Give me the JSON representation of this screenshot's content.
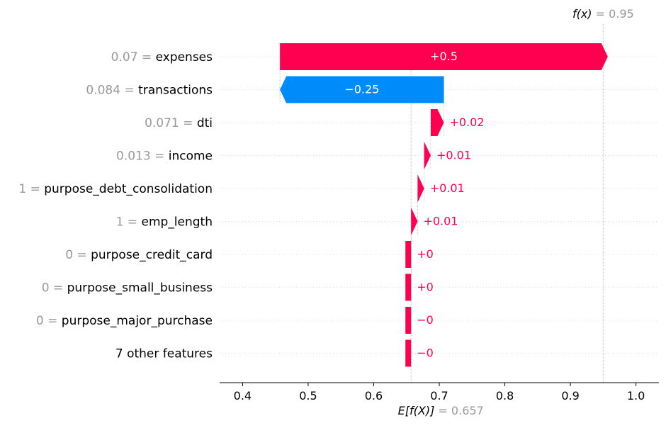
{
  "chart_data": {
    "type": "waterfall",
    "base_value": 0.657,
    "base_value_label": "0.657",
    "fx_value": 0.95,
    "fx_value_label": "0.95",
    "fx_label": "f(x)",
    "efx_label": "E[f(X)]",
    "xlim": [
      0.365,
      1.035
    ],
    "xticks": [
      0.4,
      0.5,
      0.6,
      0.7,
      0.8,
      0.9,
      1.0
    ],
    "xtick_labels": [
      "0.4",
      "0.5",
      "0.6",
      "0.7",
      "0.8",
      "0.9",
      "1.0"
    ],
    "colors": {
      "positive": "#ff0051",
      "negative": "#008bfb",
      "value_text": "#999999"
    },
    "features": [
      {
        "value_label": "0.07",
        "name": "expenses",
        "contribution": 0.5,
        "contribution_label": "+0.5"
      },
      {
        "value_label": "0.084",
        "name": "transactions",
        "contribution": -0.25,
        "contribution_label": "−0.25"
      },
      {
        "value_label": "0.071",
        "name": "dti",
        "contribution": 0.02,
        "contribution_label": "+0.02"
      },
      {
        "value_label": "0.013",
        "name": "income",
        "contribution": 0.01,
        "contribution_label": "+0.01"
      },
      {
        "value_label": "1",
        "name": "purpose_debt_consolidation",
        "contribution": 0.01,
        "contribution_label": "+0.01"
      },
      {
        "value_label": "1",
        "name": "emp_length",
        "contribution": 0.01,
        "contribution_label": "+0.01"
      },
      {
        "value_label": "0",
        "name": "purpose_credit_card",
        "contribution": 0.0,
        "contribution_label": "+0"
      },
      {
        "value_label": "0",
        "name": "purpose_small_business",
        "contribution": 0.0,
        "contribution_label": "+0"
      },
      {
        "value_label": "0",
        "name": "purpose_major_purchase",
        "contribution": -0.0,
        "contribution_label": "−0"
      },
      {
        "value_label": "",
        "name": "7 other features",
        "contribution": -0.0,
        "contribution_label": "−0"
      }
    ]
  }
}
